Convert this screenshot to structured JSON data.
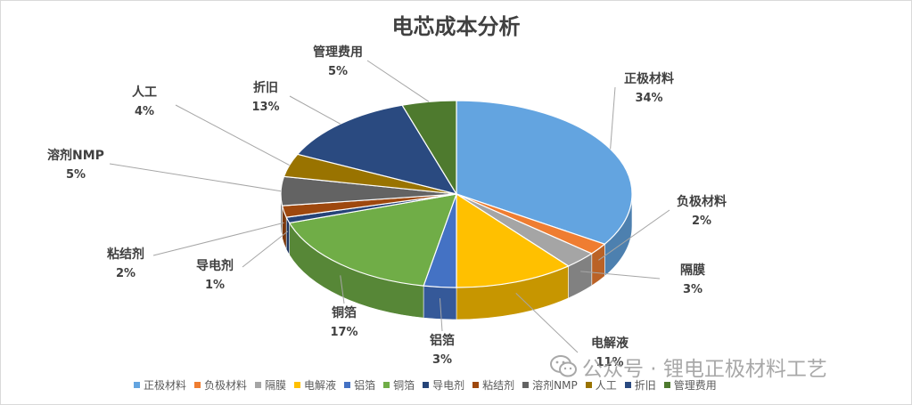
{
  "chart_data": {
    "type": "pie",
    "title": "电芯成本分析",
    "slices": [
      {
        "label": "正极材料",
        "value": 34,
        "pct_label": "34%",
        "color": "#63a4e0"
      },
      {
        "label": "负极材料",
        "value": 2,
        "pct_label": "2%",
        "color": "#ef7d31"
      },
      {
        "label": "隔膜",
        "value": 3,
        "pct_label": "3%",
        "color": "#a5a5a5"
      },
      {
        "label": "电解液",
        "value": 11,
        "pct_label": "11%",
        "color": "#ffc000"
      },
      {
        "label": "铝箔",
        "value": 3,
        "pct_label": "3%",
        "color": "#4472c4"
      },
      {
        "label": "铜箔",
        "value": 17,
        "pct_label": "17%",
        "color": "#70ad47"
      },
      {
        "label": "导电剂",
        "value": 1,
        "pct_label": "1%",
        "color": "#264478"
      },
      {
        "label": "粘结剂",
        "value": 2,
        "pct_label": "2%",
        "color": "#9e480e"
      },
      {
        "label": "溶剂NMP",
        "value": 5,
        "pct_label": "5%",
        "color": "#636363"
      },
      {
        "label": "人工",
        "value": 4,
        "pct_label": "4%",
        "color": "#997300"
      },
      {
        "label": "折旧",
        "value": 13,
        "pct_label": "13%",
        "color": "#2a4a80"
      },
      {
        "label": "管理费用",
        "value": 5,
        "pct_label": "5%",
        "color": "#4e7a2e"
      }
    ],
    "legend_position": "bottom"
  },
  "watermark": {
    "text": "公众号 · 锂电正极材料工艺",
    "icon": "wechat-icon"
  }
}
